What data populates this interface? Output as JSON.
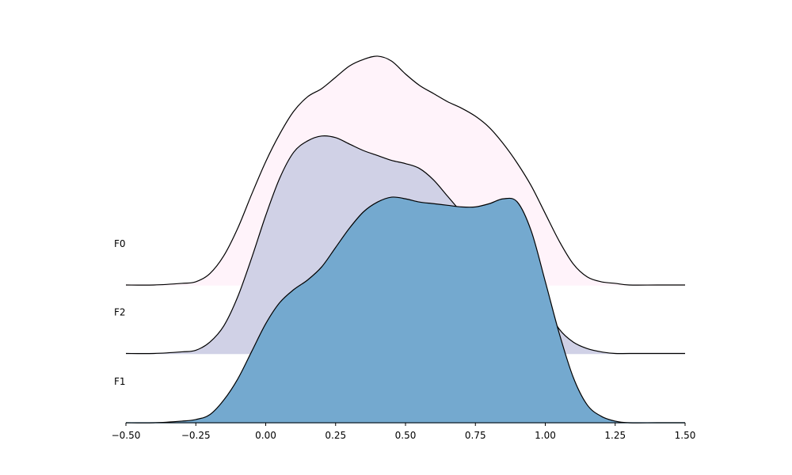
{
  "chart_data": {
    "type": "ridgeline",
    "title": "",
    "xlabel": "",
    "ylabel": "",
    "xlim": [
      -0.5,
      1.5
    ],
    "x_ticks": [
      -0.5,
      -0.25,
      0.0,
      0.25,
      0.5,
      0.75,
      1.0,
      1.25,
      1.5
    ],
    "x_tick_labels": [
      "−0.50",
      "−0.25",
      "0.00",
      "0.25",
      "0.50",
      "0.75",
      "1.00",
      "1.25",
      "1.50"
    ],
    "grid": false,
    "legend": "none",
    "x": [
      -0.5,
      -0.4,
      -0.3,
      -0.25,
      -0.2,
      -0.15,
      -0.1,
      -0.05,
      0.0,
      0.05,
      0.1,
      0.15,
      0.2,
      0.25,
      0.3,
      0.35,
      0.4,
      0.45,
      0.5,
      0.55,
      0.6,
      0.65,
      0.7,
      0.75,
      0.8,
      0.85,
      0.9,
      0.95,
      1.0,
      1.05,
      1.1,
      1.15,
      1.2,
      1.25,
      1.3,
      1.4,
      1.5
    ],
    "series": [
      {
        "name": "F0",
        "color": "#fff3fa",
        "values": [
          0,
          0,
          0.01,
          0.02,
          0.07,
          0.18,
          0.35,
          0.56,
          0.76,
          0.93,
          1.07,
          1.16,
          1.21,
          1.28,
          1.35,
          1.39,
          1.41,
          1.38,
          1.3,
          1.23,
          1.18,
          1.13,
          1.09,
          1.04,
          0.97,
          0.87,
          0.75,
          0.61,
          0.44,
          0.27,
          0.13,
          0.05,
          0.02,
          0.01,
          0,
          0,
          0
        ]
      },
      {
        "name": "F2",
        "color": "#d0d1e6",
        "values": [
          0,
          0,
          0.01,
          0.02,
          0.07,
          0.17,
          0.35,
          0.59,
          0.85,
          1.08,
          1.24,
          1.31,
          1.34,
          1.33,
          1.29,
          1.25,
          1.22,
          1.19,
          1.17,
          1.14,
          1.07,
          0.97,
          0.87,
          0.78,
          0.72,
          0.69,
          0.64,
          0.49,
          0.3,
          0.15,
          0.07,
          0.03,
          0.01,
          0,
          0,
          0,
          0
        ]
      },
      {
        "name": "F1",
        "color": "#74a9cf",
        "values": [
          0,
          0,
          0.01,
          0.02,
          0.05,
          0.14,
          0.27,
          0.44,
          0.61,
          0.74,
          0.82,
          0.88,
          0.96,
          1.08,
          1.2,
          1.3,
          1.36,
          1.39,
          1.38,
          1.36,
          1.35,
          1.34,
          1.33,
          1.33,
          1.35,
          1.38,
          1.36,
          1.18,
          0.87,
          0.55,
          0.28,
          0.11,
          0.04,
          0.01,
          0,
          0,
          0
        ]
      }
    ]
  }
}
